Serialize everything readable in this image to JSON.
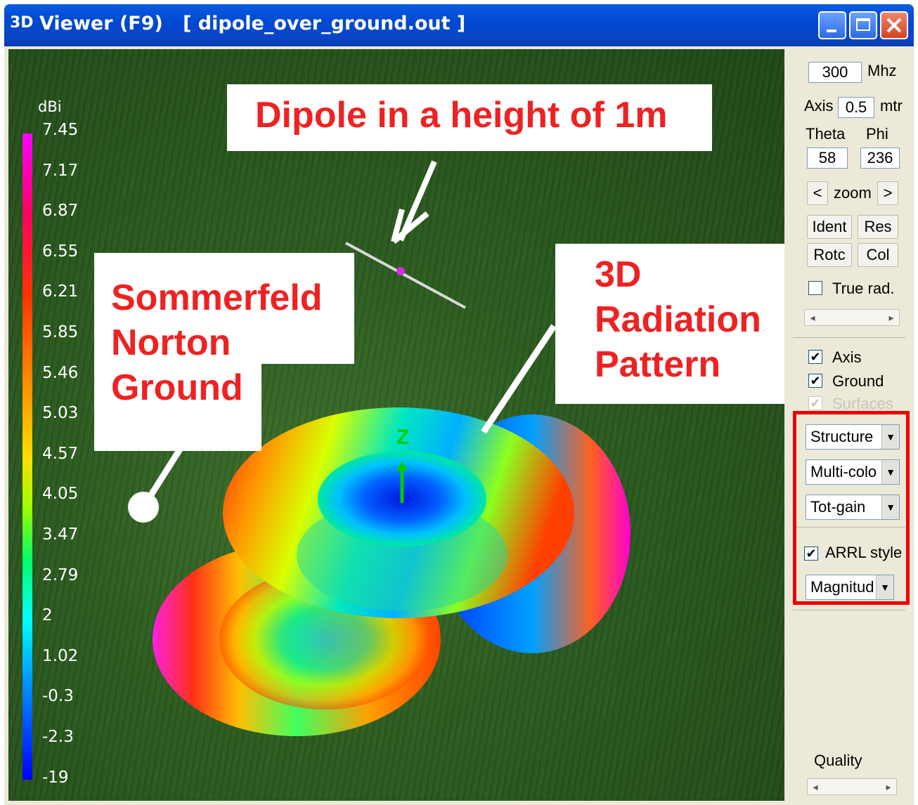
{
  "window": {
    "logo": "3D",
    "title": "Viewer (F9)   [ dipole_over_ground.out ]",
    "accent": "#0a5ce0"
  },
  "colorbar": {
    "unit": "dBi",
    "labels": [
      "7.45",
      "7.17",
      "6.87",
      "6.55",
      "6.21",
      "5.85",
      "5.46",
      "5.03",
      "4.57",
      "4.05",
      "3.47",
      "2.79",
      "2",
      "1.02",
      "-0.3",
      "-2.3",
      "-19"
    ]
  },
  "annotations": {
    "dipole": "Dipole in a height of 1m",
    "ground_1": "Sommerfeld",
    "ground_2": "Norton",
    "ground_3": "Ground",
    "pattern_1": "3D",
    "pattern_2": "Radiation",
    "pattern_3": "Pattern",
    "axis_z": "Z"
  },
  "controls": {
    "frequency": "300",
    "frequency_unit": "Mhz",
    "axis_label": "Axis",
    "axis_value": "0.5",
    "axis_unit": "mtr",
    "theta_label": "Theta",
    "phi_label": "Phi",
    "theta_value": "58",
    "phi_value": "236",
    "zoom_prev": "<",
    "zoom_label": "zoom",
    "zoom_next": ">",
    "ident": "Ident",
    "res": "Res",
    "rotc": "Rotc",
    "col": "Col",
    "true_rad": "True rad.",
    "axis_check": "Axis",
    "ground_check": "Ground",
    "surfaces_check": "Surfaces",
    "select_structure": "Structure",
    "select_color": "Multi-colo",
    "select_gain": "Tot-gain",
    "arrl_style": "ARRL style",
    "select_magnitude": "Magnitud",
    "quality": "Quality"
  }
}
